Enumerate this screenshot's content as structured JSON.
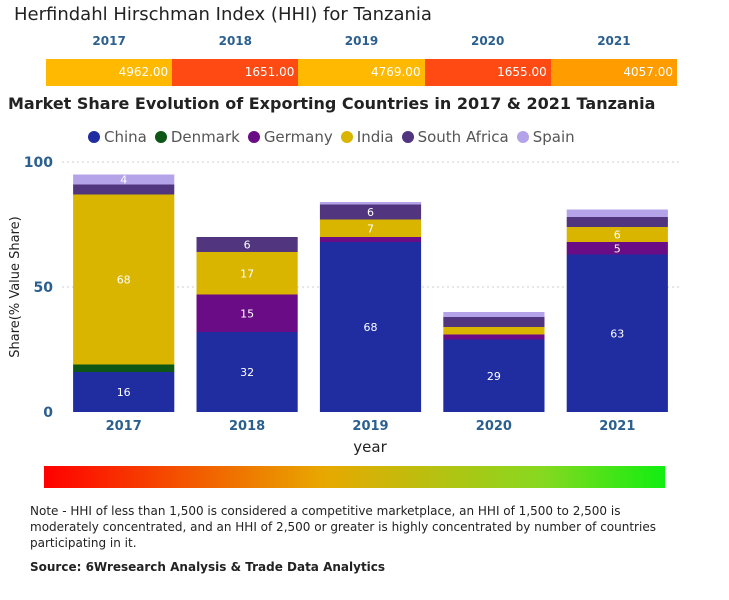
{
  "hhi": {
    "title": "Herfindahl Hirschman Index (HHI) for Tanzania",
    "entries": [
      {
        "year": "2017",
        "value": "4962.00",
        "color": "#ffb900"
      },
      {
        "year": "2018",
        "value": "1651.00",
        "color": "#ff4a13"
      },
      {
        "year": "2019",
        "value": "4769.00",
        "color": "#ffb900"
      },
      {
        "year": "2020",
        "value": "1655.00",
        "color": "#ff4a13"
      },
      {
        "year": "2021",
        "value": "4057.00",
        "color": "#ff9c00"
      }
    ]
  },
  "chart_data": {
    "type": "bar",
    "stacked": true,
    "title": "Market Share Evolution of Exporting Countries in 2017 & 2021 Tanzania",
    "xlabel": "year",
    "ylabel": "Share(% Value Share)",
    "ylim": [
      0,
      100
    ],
    "yticks": [
      0,
      50,
      100
    ],
    "grid": true,
    "legend_position": "top",
    "categories": [
      "2017",
      "2018",
      "2019",
      "2020",
      "2021"
    ],
    "series": [
      {
        "name": "China",
        "color": "#1f2da0",
        "values": [
          16,
          32,
          68,
          29,
          63
        ],
        "labels": [
          "16",
          "32",
          "68",
          "29",
          "63"
        ]
      },
      {
        "name": "Denmark",
        "color": "#0d5616",
        "values": [
          3,
          0,
          0,
          0,
          0
        ],
        "labels": [
          "",
          "",
          "",
          "",
          ""
        ]
      },
      {
        "name": "Germany",
        "color": "#690c86",
        "values": [
          0,
          15,
          2,
          2,
          5
        ],
        "labels": [
          "",
          "15",
          "",
          "",
          "5"
        ]
      },
      {
        "name": "India",
        "color": "#d9b500",
        "values": [
          68,
          17,
          7,
          3,
          6
        ],
        "labels": [
          "68",
          "17",
          "7",
          "",
          "6"
        ]
      },
      {
        "name": "South Africa",
        "color": "#51357f",
        "values": [
          4,
          6,
          6,
          4,
          4
        ],
        "labels": [
          "",
          "6",
          "6",
          "",
          ""
        ]
      },
      {
        "name": "Spain",
        "color": "#b5a3e9",
        "values": [
          4,
          0,
          1,
          2,
          3
        ],
        "labels": [
          "4",
          "",
          "",
          "",
          ""
        ]
      }
    ]
  },
  "footer": {
    "note": "Note - HHI of less than 1,500 is considered a competitive marketplace, an HHI of 1,500 to 2,500 is moderately concentrated, and an HHI of 2,500 or greater is highly concentrated by number of countries participating in it.",
    "source": "Source: 6Wresearch Analysis & Trade Data Analytics"
  }
}
